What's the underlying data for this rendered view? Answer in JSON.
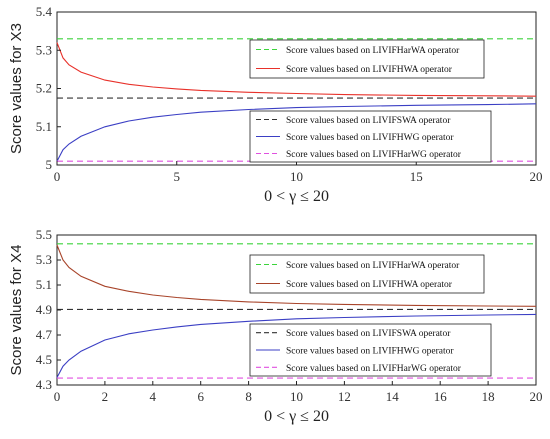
{
  "chart_data": [
    {
      "type": "line",
      "ylabel": "Score values for X3",
      "xlabel": "0 < γ ≤ 20",
      "xlim": [
        0,
        20
      ],
      "ylim": [
        5.0,
        5.4
      ],
      "xticks": [
        0,
        5,
        10,
        15,
        20
      ],
      "yticks": [
        5,
        5.1,
        5.2,
        5.3,
        5.4
      ],
      "grid": false,
      "series": [
        {
          "name": "Score values based on LIVIFHarWA operator",
          "style": "dashed",
          "color": "#3cd43c",
          "x": [
            0,
            20
          ],
          "y": [
            5.33,
            5.33
          ]
        },
        {
          "name": "Score values based on LIVIFHWA operator",
          "style": "solid",
          "color": "#e8312a",
          "x": [
            0,
            0.25,
            0.5,
            1,
            2,
            3,
            4,
            5,
            6,
            8,
            10,
            12,
            15,
            18,
            20
          ],
          "y": [
            5.32,
            5.28,
            5.262,
            5.243,
            5.222,
            5.211,
            5.204,
            5.199,
            5.195,
            5.19,
            5.187,
            5.184,
            5.182,
            5.181,
            5.18
          ]
        },
        {
          "name": "Score values based on LIVIFSWA operator",
          "style": "dashed",
          "color": "#333333",
          "x": [
            0,
            20
          ],
          "y": [
            5.175,
            5.175
          ]
        },
        {
          "name": "Score values based on LIVIFHWG operator",
          "style": "solid",
          "color": "#3b3fc4",
          "x": [
            0,
            0.25,
            0.5,
            1,
            2,
            3,
            4,
            5,
            6,
            8,
            10,
            12,
            15,
            18,
            20
          ],
          "y": [
            5.01,
            5.04,
            5.055,
            5.075,
            5.1,
            5.115,
            5.125,
            5.132,
            5.138,
            5.145,
            5.15,
            5.153,
            5.156,
            5.158,
            5.16
          ]
        },
        {
          "name": "Score values  based on  LIVIFHarWG operator",
          "style": "dashed",
          "color": "#e050e0",
          "x": [
            0,
            20
          ],
          "y": [
            5.01,
            5.01
          ]
        }
      ],
      "legend_groups": [
        {
          "placement": "upper",
          "entries": [
            0,
            1
          ]
        },
        {
          "placement": "lower",
          "entries": [
            2,
            3,
            4
          ]
        }
      ]
    },
    {
      "type": "line",
      "ylabel": "Score values for X4",
      "xlabel": "0 < γ ≤ 20",
      "xlim": [
        0,
        20
      ],
      "ylim": [
        4.3,
        5.5
      ],
      "xticks": [
        0,
        2,
        4,
        6,
        8,
        10,
        12,
        14,
        16,
        18,
        20
      ],
      "yticks": [
        4.3,
        4.5,
        4.7,
        4.9,
        5.1,
        5.3,
        5.5
      ],
      "grid": false,
      "series": [
        {
          "name": "Score values based on LIVIFHarWA operator",
          "style": "dashed",
          "color": "#3cd43c",
          "x": [
            0,
            20
          ],
          "y": [
            5.43,
            5.43
          ]
        },
        {
          "name": "Score values based on LIVIFHWA operator",
          "style": "solid",
          "color": "#a8442a",
          "x": [
            0,
            0.25,
            0.5,
            1,
            2,
            3,
            4,
            5,
            6,
            8,
            10,
            12,
            15,
            18,
            20
          ],
          "y": [
            5.42,
            5.3,
            5.24,
            5.17,
            5.09,
            5.05,
            5.02,
            5.0,
            4.985,
            4.965,
            4.952,
            4.945,
            4.937,
            4.932,
            4.93
          ]
        },
        {
          "name": "Score values based on LIVIFSWA operator",
          "style": "dashed",
          "color": "#333333",
          "x": [
            0,
            20
          ],
          "y": [
            4.905,
            4.905
          ]
        },
        {
          "name": "Score values based on LIVIFHWG operator",
          "style": "solid",
          "color": "#3b3fc4",
          "x": [
            0,
            0.25,
            0.5,
            1,
            2,
            3,
            4,
            5,
            6,
            8,
            10,
            12,
            15,
            18,
            20
          ],
          "y": [
            4.36,
            4.45,
            4.5,
            4.57,
            4.66,
            4.71,
            4.74,
            4.765,
            4.785,
            4.81,
            4.83,
            4.84,
            4.852,
            4.86,
            4.865
          ]
        },
        {
          "name": "Score values  based on  LIVIFHarWG operator",
          "style": "dashed",
          "color": "#e050e0",
          "x": [
            0,
            20
          ],
          "y": [
            4.355,
            4.355
          ]
        }
      ],
      "legend_groups": [
        {
          "placement": "upper",
          "entries": [
            0,
            1
          ]
        },
        {
          "placement": "lower",
          "entries": [
            2,
            3,
            4
          ]
        }
      ]
    }
  ]
}
